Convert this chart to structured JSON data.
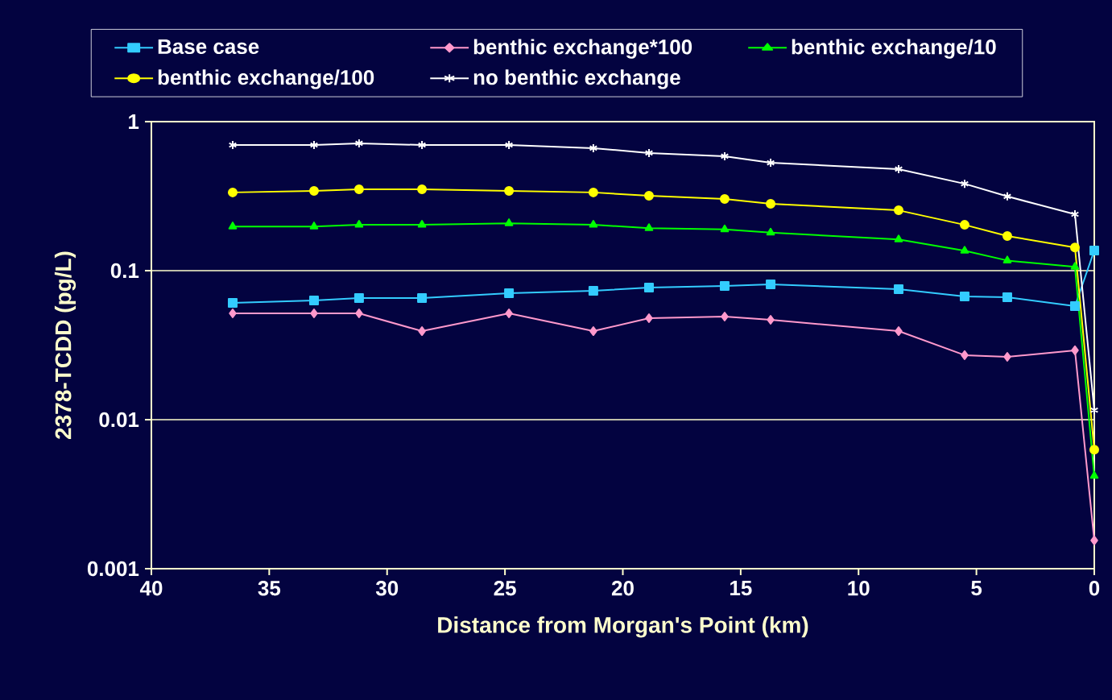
{
  "chart_data": {
    "type": "line",
    "xlabel": "Distance from Morgan's Point (km)",
    "ylabel": "2378-TCDD (pg/L)",
    "x": [
      36.55,
      33.1,
      31.19,
      28.52,
      24.83,
      21.25,
      18.89,
      15.68,
      13.73,
      8.3,
      5.5,
      3.69,
      0.82,
      0
    ],
    "series": [
      {
        "name": "Base case",
        "color": "#33ccff",
        "marker": "square",
        "values": [
          0.0608,
          0.0631,
          0.0655,
          0.0655,
          0.0706,
          0.0732,
          0.077,
          0.0789,
          0.081,
          0.0751,
          0.0671,
          0.0663,
          0.0578,
          0.1365
        ]
      },
      {
        "name": "benthic exchange*100",
        "color": "#ff99cc",
        "marker": "diamond",
        "values": [
          0.0517,
          0.0517,
          0.0517,
          0.0393,
          0.0517,
          0.0393,
          0.048,
          0.0492,
          0.0468,
          0.0393,
          0.0271,
          0.0264,
          0.0292,
          0.00155
        ]
      },
      {
        "name": "benthic exchange/10",
        "color": "#00ff00",
        "marker": "triangle",
        "values": [
          0.198,
          0.198,
          0.203,
          0.203,
          0.208,
          0.203,
          0.193,
          0.189,
          0.18,
          0.162,
          0.136,
          0.117,
          0.106,
          0.0042
        ]
      },
      {
        "name": "benthic exchange/100",
        "color": "#ffff00",
        "marker": "circle",
        "values": [
          0.335,
          0.343,
          0.352,
          0.352,
          0.343,
          0.335,
          0.318,
          0.303,
          0.281,
          0.254,
          0.203,
          0.171,
          0.143,
          0.0063
        ]
      },
      {
        "name": "no benthic exchange",
        "color": "#ffffff",
        "marker": "cross",
        "values": [
          0.697,
          0.697,
          0.715,
          0.697,
          0.697,
          0.664,
          0.616,
          0.586,
          0.53,
          0.48,
          0.383,
          0.315,
          0.239,
          0.0116
        ]
      }
    ],
    "xlim": [
      40,
      0
    ],
    "xticks": [
      40,
      35,
      30,
      25,
      20,
      15,
      10,
      5,
      0
    ],
    "ylim": [
      0.001,
      1
    ],
    "yticks": [
      1,
      0.1,
      0.01,
      0.001
    ],
    "log": "y",
    "grid": "y",
    "legend": "top",
    "line_style": "solid"
  }
}
